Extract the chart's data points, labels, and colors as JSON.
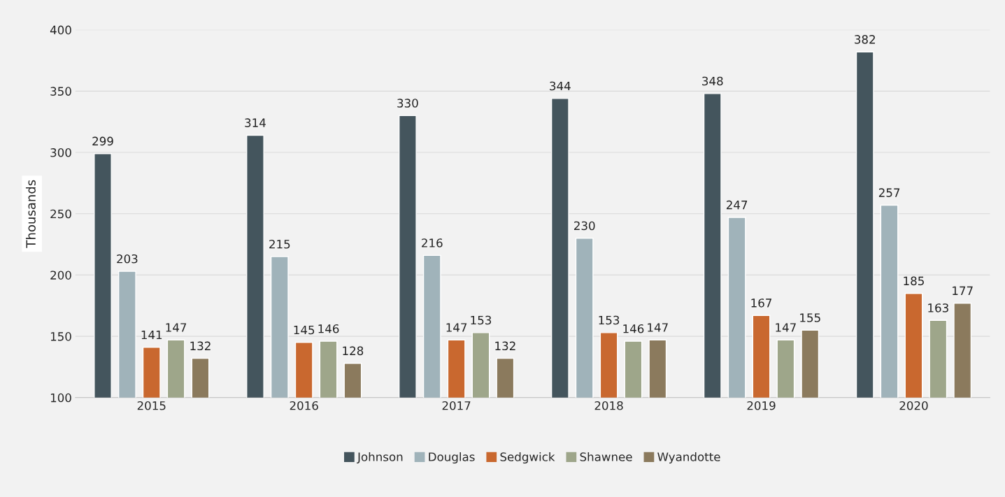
{
  "chart_data": {
    "type": "bar",
    "ylabel": "Thousands",
    "categories": [
      "2015",
      "2016",
      "2017",
      "2018",
      "2019",
      "2020"
    ],
    "series": [
      {
        "name": "Johnson",
        "color": "#44555d",
        "values": [
          299,
          314,
          330,
          344,
          348,
          382
        ]
      },
      {
        "name": "Douglas",
        "color": "#a0b3ba",
        "values": [
          203,
          215,
          216,
          230,
          247,
          257
        ]
      },
      {
        "name": "Sedgwick",
        "color": "#c9682f",
        "values": [
          141,
          145,
          147,
          153,
          167,
          185
        ]
      },
      {
        "name": "Shawnee",
        "color": "#9ea68a",
        "values": [
          147,
          146,
          153,
          146,
          147,
          163
        ]
      },
      {
        "name": "Wyandotte",
        "color": "#8b7a5d",
        "values": [
          132,
          128,
          132,
          147,
          155,
          177
        ]
      }
    ],
    "ylim": [
      100,
      400
    ],
    "yticks": [
      100,
      150,
      200,
      250,
      300,
      350,
      400
    ],
    "grid": "y",
    "legend": "bottom",
    "data_labels": true
  }
}
